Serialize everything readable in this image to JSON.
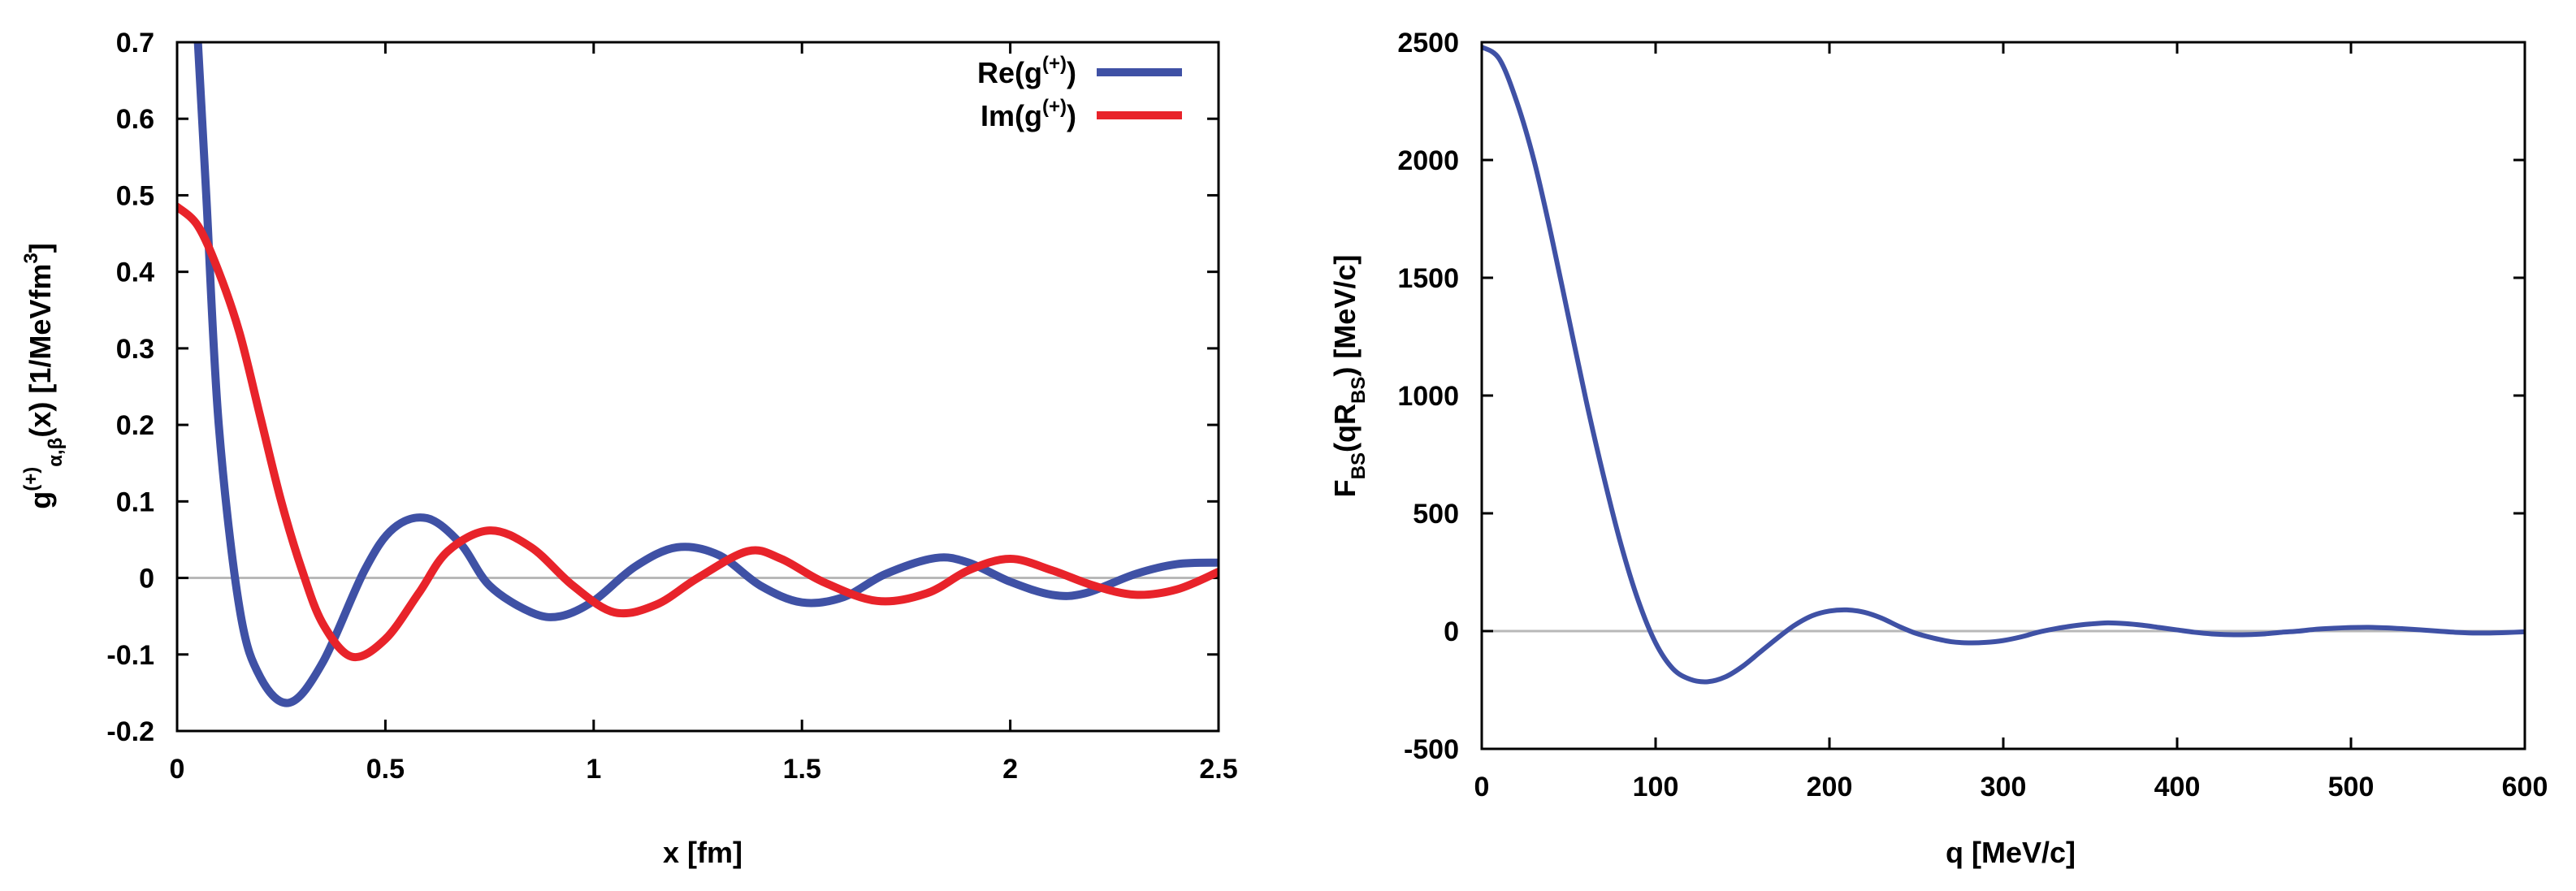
{
  "chart_data": [
    {
      "type": "line",
      "title": "",
      "xlabel": "x [fm]",
      "ylabel": {
        "base": "g",
        "sup": "(+)",
        "sub": "α,β",
        "mid": "(x) [1/MeVfm",
        "exp": "3",
        "end": "]"
      },
      "xlim": [
        0,
        2.5
      ],
      "ylim": [
        -0.2,
        0.7
      ],
      "xticks": [
        0,
        0.5,
        1,
        1.5,
        2,
        2.5
      ],
      "xtick_labels": [
        "0",
        "0.5",
        "1",
        "1.5",
        "2",
        "2.5"
      ],
      "yticks": [
        -0.2,
        -0.1,
        0,
        0.1,
        0.2,
        0.3,
        0.4,
        0.5,
        0.6,
        0.7
      ],
      "ytick_labels": [
        "-0.2",
        "-0.1",
        "0",
        "0.1",
        "0.2",
        "0.3",
        "0.4",
        "0.5",
        "0.6",
        "0.7"
      ],
      "zero_line": true,
      "legend_position": "top-right",
      "series": [
        {
          "name": "Re(g(+))",
          "legend": {
            "base": "Re(g",
            "sup": "(+)",
            "end": ")"
          },
          "color": "#3f51a5",
          "points": [
            [
              0.05,
              0.7
            ],
            [
              0.07,
              0.5
            ],
            [
              0.1,
              0.2
            ],
            [
              0.15,
              -0.04
            ],
            [
              0.2,
              -0.13
            ],
            [
              0.27,
              -0.163
            ],
            [
              0.35,
              -0.11
            ],
            [
              0.45,
              0.01
            ],
            [
              0.52,
              0.065
            ],
            [
              0.6,
              0.078
            ],
            [
              0.68,
              0.045
            ],
            [
              0.75,
              -0.01
            ],
            [
              0.85,
              -0.045
            ],
            [
              0.92,
              -0.05
            ],
            [
              1.0,
              -0.03
            ],
            [
              1.1,
              0.015
            ],
            [
              1.2,
              0.04
            ],
            [
              1.3,
              0.03
            ],
            [
              1.4,
              -0.01
            ],
            [
              1.5,
              -0.032
            ],
            [
              1.6,
              -0.025
            ],
            [
              1.7,
              0.005
            ],
            [
              1.82,
              0.026
            ],
            [
              1.9,
              0.02
            ],
            [
              2.0,
              -0.005
            ],
            [
              2.1,
              -0.022
            ],
            [
              2.18,
              -0.02
            ],
            [
              2.3,
              0.005
            ],
            [
              2.4,
              0.018
            ],
            [
              2.5,
              0.02
            ]
          ]
        },
        {
          "name": "Im(g(+))",
          "legend": {
            "base": "Im(g",
            "sup": "(+)",
            "end": ")"
          },
          "color": "#e8232a",
          "points": [
            [
              0.0,
              0.485
            ],
            [
              0.05,
              0.46
            ],
            [
              0.1,
              0.4
            ],
            [
              0.15,
              0.32
            ],
            [
              0.2,
              0.21
            ],
            [
              0.25,
              0.1
            ],
            [
              0.3,
              0.01
            ],
            [
              0.35,
              -0.06
            ],
            [
              0.42,
              -0.103
            ],
            [
              0.5,
              -0.08
            ],
            [
              0.58,
              -0.02
            ],
            [
              0.65,
              0.035
            ],
            [
              0.75,
              0.062
            ],
            [
              0.85,
              0.04
            ],
            [
              0.95,
              -0.01
            ],
            [
              1.05,
              -0.045
            ],
            [
              1.15,
              -0.035
            ],
            [
              1.25,
              0.0
            ],
            [
              1.37,
              0.035
            ],
            [
              1.45,
              0.025
            ],
            [
              1.55,
              -0.005
            ],
            [
              1.68,
              -0.03
            ],
            [
              1.8,
              -0.02
            ],
            [
              1.9,
              0.01
            ],
            [
              2.0,
              0.025
            ],
            [
              2.1,
              0.01
            ],
            [
              2.2,
              -0.01
            ],
            [
              2.3,
              -0.022
            ],
            [
              2.4,
              -0.015
            ],
            [
              2.5,
              0.008
            ]
          ]
        }
      ]
    },
    {
      "type": "line",
      "title": "",
      "xlabel": "q [MeV/c]",
      "ylabel": {
        "p1": "F",
        "s1": "BS",
        "p2": "(qR",
        "s2": "BS",
        "p3": ") [MeV/c]"
      },
      "xlim": [
        0,
        600
      ],
      "ylim": [
        -500,
        2500
      ],
      "xticks": [
        0,
        100,
        200,
        300,
        400,
        500,
        600
      ],
      "xtick_labels": [
        "0",
        "100",
        "200",
        "300",
        "400",
        "500",
        "600"
      ],
      "yticks": [
        -500,
        0,
        500,
        1000,
        1500,
        2000,
        2500
      ],
      "ytick_labels": [
        "-500",
        "0",
        "500",
        "1000",
        "1500",
        "2000",
        "2500"
      ],
      "zero_line": true,
      "series": [
        {
          "name": "F_BS(qR_BS)",
          "color": "#3f51a5",
          "points": [
            [
              0,
              2480
            ],
            [
              10,
              2430
            ],
            [
              20,
              2250
            ],
            [
              30,
              2000
            ],
            [
              40,
              1680
            ],
            [
              50,
              1330
            ],
            [
              60,
              980
            ],
            [
              70,
              660
            ],
            [
              80,
              370
            ],
            [
              90,
              130
            ],
            [
              100,
              -50
            ],
            [
              110,
              -160
            ],
            [
              120,
              -205
            ],
            [
              130,
              -215
            ],
            [
              140,
              -195
            ],
            [
              150,
              -150
            ],
            [
              160,
              -90
            ],
            [
              170,
              -30
            ],
            [
              180,
              25
            ],
            [
              190,
              65
            ],
            [
              200,
              85
            ],
            [
              210,
              90
            ],
            [
              220,
              80
            ],
            [
              230,
              55
            ],
            [
              240,
              20
            ],
            [
              250,
              -10
            ],
            [
              260,
              -30
            ],
            [
              270,
              -45
            ],
            [
              280,
              -50
            ],
            [
              290,
              -48
            ],
            [
              300,
              -40
            ],
            [
              310,
              -25
            ],
            [
              320,
              -5
            ],
            [
              330,
              10
            ],
            [
              340,
              22
            ],
            [
              350,
              30
            ],
            [
              360,
              35
            ],
            [
              370,
              32
            ],
            [
              380,
              25
            ],
            [
              390,
              15
            ],
            [
              400,
              5
            ],
            [
              410,
              -5
            ],
            [
              420,
              -12
            ],
            [
              430,
              -15
            ],
            [
              440,
              -15
            ],
            [
              450,
              -12
            ],
            [
              460,
              -5
            ],
            [
              470,
              0
            ],
            [
              480,
              8
            ],
            [
              490,
              12
            ],
            [
              500,
              15
            ],
            [
              510,
              16
            ],
            [
              520,
              14
            ],
            [
              530,
              10
            ],
            [
              540,
              5
            ],
            [
              550,
              0
            ],
            [
              560,
              -5
            ],
            [
              570,
              -8
            ],
            [
              580,
              -8
            ],
            [
              590,
              -6
            ],
            [
              600,
              -3
            ]
          ]
        }
      ]
    }
  ]
}
